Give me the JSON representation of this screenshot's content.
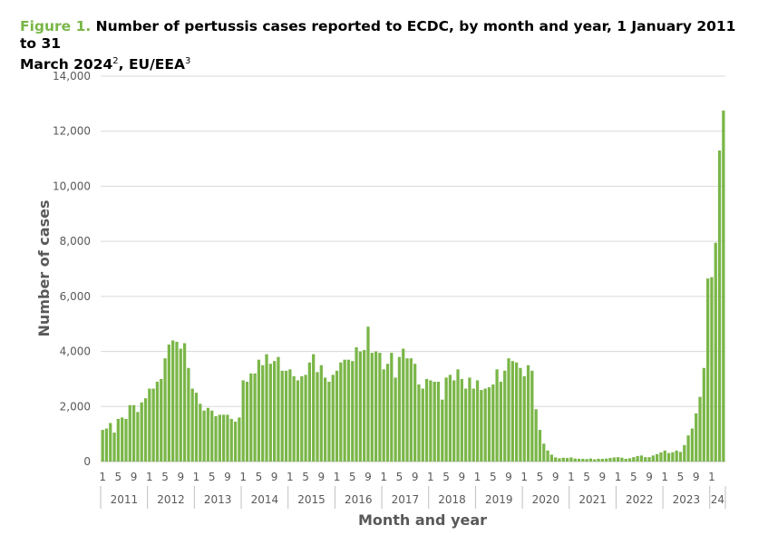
{
  "title": {
    "figure_label": "Figure 1.",
    "text_line1": "Number of pertussis cases reported to ECDC, by month and year, 1 January 2011 to 31",
    "text_line2": "March 2024",
    "sup1": "2",
    "text_line2b": ", EU/EEA",
    "sup2": "3"
  },
  "chart_data": {
    "type": "bar",
    "title": "Number of pertussis cases reported to ECDC, by month and year, 1 January 2011 to 31 March 2024, EU/EEA",
    "xlabel": "Month and year",
    "ylabel": "Number of cases",
    "ylim": [
      0,
      14000
    ],
    "yticks": [
      "0",
      "2,000",
      "4,000",
      "6,000",
      "8,000",
      "10,000",
      "12,000",
      "14,000"
    ],
    "grid": "horizontal",
    "bar_color": "#7ab648",
    "month_tick_labels": [
      "1",
      "5",
      "9"
    ],
    "years": [
      "2011",
      "2012",
      "2013",
      "2014",
      "2015",
      "2016",
      "2017",
      "2018",
      "2019",
      "2020",
      "2021",
      "2022",
      "2023",
      "24"
    ],
    "series": [
      {
        "values": [
          1150,
          1200,
          1400,
          1050,
          1550,
          1600,
          1550,
          2050,
          2050,
          1800,
          2150,
          2300,
          2650,
          2650,
          2900,
          3000,
          3750,
          4250,
          4400,
          4350,
          4100,
          4300,
          3400,
          2650,
          2500,
          2100,
          1850,
          1950,
          1850,
          1650,
          1700,
          1700,
          1700,
          1550,
          1450,
          1600,
          2950,
          2900,
          3200,
          3200,
          3700,
          3500,
          3900,
          3550,
          3650,
          3800,
          3300,
          3300,
          3350,
          3100,
          2950,
          3100,
          3150,
          3600,
          3900,
          3250,
          3500,
          3050,
          2900,
          3150,
          3300,
          3600,
          3700,
          3700,
          3650,
          4150,
          4000,
          4050,
          4900,
          3950,
          4000,
          3950,
          3350,
          3550,
          3950,
          3050,
          3800,
          4100,
          3750,
          3750,
          3550,
          2800,
          2650,
          3000,
          2950,
          2900,
          2900,
          2250,
          3050,
          3150,
          2950,
          3350,
          3000,
          2650,
          3050,
          2650,
          2950,
          2600,
          2650,
          2700,
          2800,
          3350,
          2900,
          3300,
          3750,
          3650,
          3600,
          3400,
          3100,
          3500,
          3300,
          1900,
          1150,
          650,
          400,
          250,
          150,
          120,
          140,
          130,
          150,
          110,
          100,
          100,
          90,
          110,
          80,
          100,
          100,
          110,
          130,
          150,
          160,
          140,
          100,
          120,
          160,
          200,
          220,
          160,
          160,
          220,
          270,
          330,
          400,
          310,
          340,
          400,
          350,
          600,
          950,
          1200,
          1750,
          2350,
          3400,
          6650,
          6700,
          7950,
          11300,
          12750
        ]
      }
    ]
  }
}
